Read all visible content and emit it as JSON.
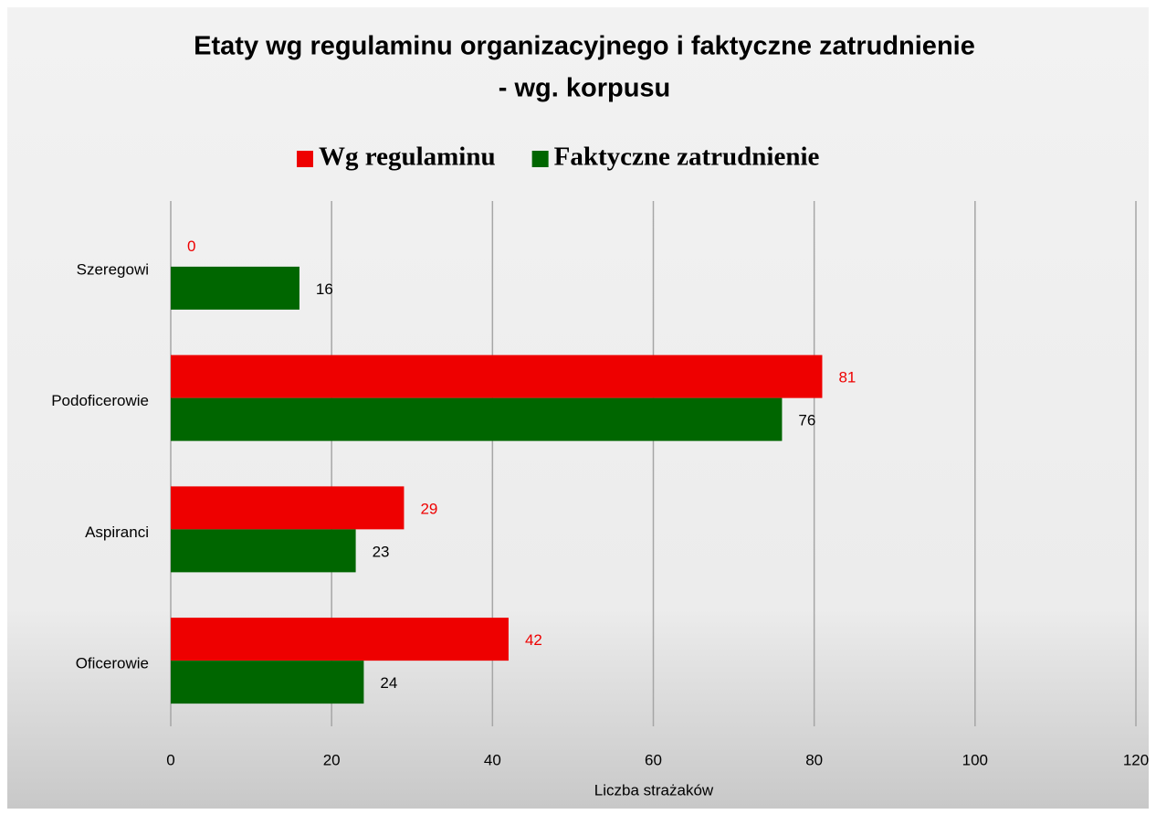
{
  "chart_data": {
    "type": "hbar",
    "title": [
      "Etaty wg regulaminu organizacyjnego i faktyczne zatrudnienie",
      "- wg. korpusu"
    ],
    "x_label": "Liczba strażaków",
    "categories": [
      "Szeregowi",
      "Podoficerowie",
      "Aspiranci",
      "Oficerowie"
    ],
    "series": [
      {
        "name": "Wg regulaminu",
        "color": "#ee0000",
        "label_color": "#ee0000",
        "values": [
          0,
          81,
          29,
          42
        ]
      },
      {
        "name": "Faktyczne zatrudnienie",
        "color": "#006600",
        "label_color": "#000000",
        "values": [
          16,
          76,
          23,
          24
        ]
      }
    ],
    "xlim": [
      0,
      120
    ],
    "xticks": [
      0,
      20,
      40,
      60,
      80,
      100,
      120
    ],
    "grid": true,
    "legend": "top"
  }
}
